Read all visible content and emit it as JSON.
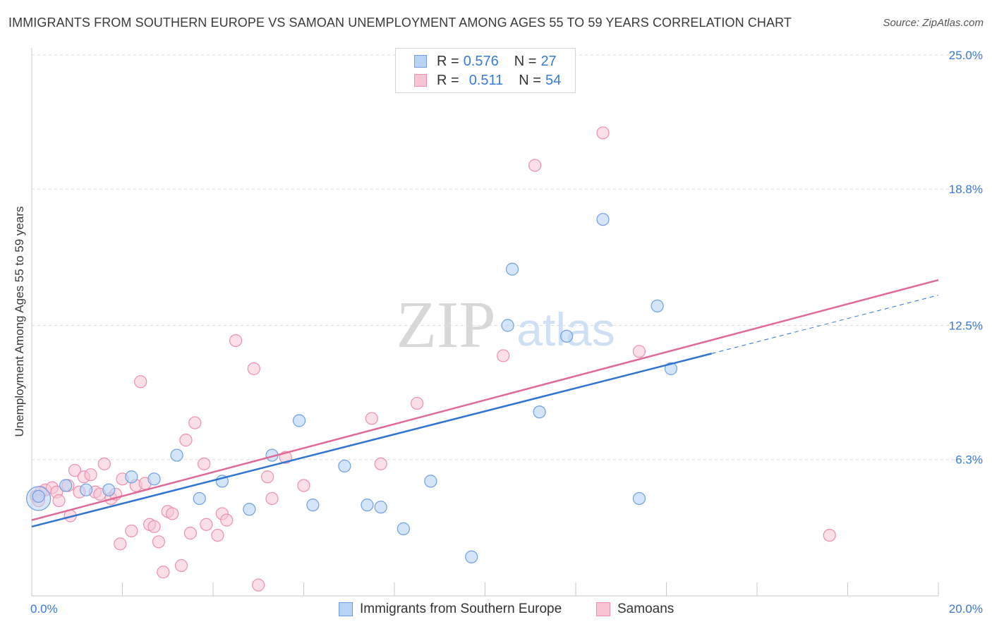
{
  "header": {
    "title": "IMMIGRANTS FROM SOUTHERN EUROPE VS SAMOAN UNEMPLOYMENT AMONG AGES 55 TO 59 YEARS CORRELATION CHART",
    "source": "Source: ZipAtlas.com"
  },
  "watermark": {
    "zip": "ZIP",
    "atlas": "atlas"
  },
  "legend_top": {
    "rows": [
      {
        "r_label": "R =",
        "r_value": "0.576",
        "n_label": "N =",
        "n_value": "27"
      },
      {
        "r_label": "R =",
        "r_value": "0.511",
        "n_label": "N =",
        "n_value": "54"
      }
    ]
  },
  "colors": {
    "series1_fill": "#b9d3f5",
    "series1_stroke": "#6f9fe0",
    "series1_line": "#2f74d0",
    "series2_fill": "#f8c4d4",
    "series2_stroke": "#ec90ae",
    "series2_line": "#e0699a",
    "tick_text": "#3a7ad6",
    "grid": "#dcdcdc"
  },
  "chart_data": {
    "type": "scatter",
    "title": "IMMIGRANTS FROM SOUTHERN EUROPE VS SAMOAN UNEMPLOYMENT AMONG AGES 55 TO 59 YEARS CORRELATION CHART",
    "xlabel": "",
    "ylabel": "Unemployment Among Ages 55 to 59 years",
    "xlim": [
      0,
      20
    ],
    "ylim": [
      0,
      25
    ],
    "x_tick_labels": [
      "0.0%",
      "20.0%"
    ],
    "y_ticks": [
      6.3,
      12.5,
      18.8,
      25.0
    ],
    "y_tick_labels": [
      "6.3%",
      "12.5%",
      "18.8%",
      "25.0%"
    ],
    "grid": true,
    "legend_position": "bottom",
    "series": [
      {
        "name": "Immigrants from Southern Europe",
        "r": 0.576,
        "n": 27,
        "trend": {
          "x0": 0,
          "y0": 3.2,
          "x1": 15.0,
          "y1": 11.2,
          "dashed_to_x": 20,
          "dashed_to_y": 13.9
        },
        "points": [
          [
            0.15,
            4.6
          ],
          [
            0.75,
            5.1
          ],
          [
            1.2,
            4.9
          ],
          [
            1.7,
            4.9
          ],
          [
            2.2,
            5.5
          ],
          [
            2.7,
            5.4
          ],
          [
            3.2,
            6.5
          ],
          [
            3.7,
            4.5
          ],
          [
            4.2,
            5.3
          ],
          [
            4.8,
            4.0
          ],
          [
            5.3,
            6.5
          ],
          [
            5.9,
            8.1
          ],
          [
            6.2,
            4.2
          ],
          [
            6.9,
            6.0
          ],
          [
            7.4,
            4.2
          ],
          [
            7.7,
            4.1
          ],
          [
            8.2,
            3.1
          ],
          [
            8.8,
            5.3
          ],
          [
            9.7,
            1.8
          ],
          [
            10.5,
            12.5
          ],
          [
            10.6,
            15.1
          ],
          [
            11.2,
            8.5
          ],
          [
            11.8,
            12.0
          ],
          [
            12.6,
            17.4
          ],
          [
            13.4,
            4.5
          ],
          [
            13.8,
            13.4
          ],
          [
            14.1,
            10.5
          ]
        ],
        "large_point": [
          0.15,
          4.5
        ]
      },
      {
        "name": "Samoans",
        "r": 0.511,
        "n": 54,
        "trend": {
          "x0": 0,
          "y0": 3.5,
          "x1": 20,
          "y1": 14.6
        },
        "points": [
          [
            0.1,
            4.6
          ],
          [
            0.2,
            4.8
          ],
          [
            0.3,
            4.9
          ],
          [
            0.45,
            5.0
          ],
          [
            0.55,
            4.8
          ],
          [
            0.6,
            4.4
          ],
          [
            0.8,
            5.1
          ],
          [
            0.85,
            3.7
          ],
          [
            0.95,
            5.8
          ],
          [
            1.05,
            4.8
          ],
          [
            1.15,
            5.5
          ],
          [
            1.3,
            5.6
          ],
          [
            1.4,
            4.8
          ],
          [
            1.5,
            4.7
          ],
          [
            1.6,
            6.1
          ],
          [
            1.75,
            4.5
          ],
          [
            1.85,
            4.7
          ],
          [
            1.95,
            2.4
          ],
          [
            2.0,
            5.4
          ],
          [
            2.2,
            3.0
          ],
          [
            2.3,
            5.1
          ],
          [
            2.4,
            9.9
          ],
          [
            2.5,
            5.2
          ],
          [
            2.6,
            3.3
          ],
          [
            2.7,
            3.2
          ],
          [
            2.8,
            2.5
          ],
          [
            2.9,
            1.1
          ],
          [
            3.0,
            3.9
          ],
          [
            3.1,
            3.8
          ],
          [
            3.3,
            1.4
          ],
          [
            3.4,
            7.2
          ],
          [
            3.5,
            2.9
          ],
          [
            3.6,
            8.0
          ],
          [
            3.8,
            6.1
          ],
          [
            3.85,
            3.3
          ],
          [
            4.1,
            2.8
          ],
          [
            4.2,
            3.8
          ],
          [
            4.3,
            3.5
          ],
          [
            4.5,
            11.8
          ],
          [
            4.9,
            10.5
          ],
          [
            5.0,
            0.5
          ],
          [
            5.2,
            5.5
          ],
          [
            5.3,
            4.5
          ],
          [
            5.6,
            6.4
          ],
          [
            6.0,
            5.1
          ],
          [
            7.5,
            8.2
          ],
          [
            7.7,
            6.1
          ],
          [
            8.5,
            8.9
          ],
          [
            10.4,
            11.1
          ],
          [
            11.1,
            19.9
          ],
          [
            12.6,
            21.4
          ],
          [
            13.4,
            11.3
          ],
          [
            17.6,
            2.8
          ],
          [
            0.15,
            4.4
          ]
        ]
      }
    ]
  }
}
